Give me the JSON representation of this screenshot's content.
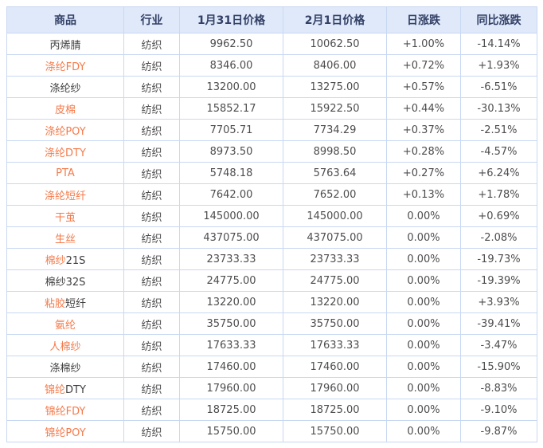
{
  "colors": {
    "header_bg": "#dfe9fa",
    "header_text": "#344066",
    "grid_line": "#c9d8f2",
    "dark_text": "#404040",
    "gray_text": "#4d4d4d",
    "orange_link": "#f57a4a",
    "up_red": "#e60000",
    "down_green": "#008000"
  },
  "table": {
    "columns": [
      {
        "label": "商品"
      },
      {
        "label": "行业"
      },
      {
        "label": "1月31日价格"
      },
      {
        "label": "2月1日价格"
      },
      {
        "label": "日涨跌"
      },
      {
        "label": "同比涨跌"
      }
    ],
    "rows": [
      {
        "name": [
          {
            "text": "丙烯腈",
            "style": "dark"
          }
        ],
        "industry": "纺织",
        "price_jan31": "9962.50",
        "price_feb1": "10062.50",
        "daily_change": {
          "text": "+1.00%",
          "style": "red"
        },
        "yoy_change": {
          "text": "-14.14%",
          "style": "green"
        }
      },
      {
        "name": [
          {
            "text": "涤纶FDY",
            "style": "orange"
          }
        ],
        "industry": "纺织",
        "price_jan31": "8346.00",
        "price_feb1": "8406.00",
        "daily_change": {
          "text": "+0.72%",
          "style": "red"
        },
        "yoy_change": {
          "text": "+1.93%",
          "style": "red"
        }
      },
      {
        "name": [
          {
            "text": "涤纶纱",
            "style": "dark"
          }
        ],
        "industry": "纺织",
        "price_jan31": "13200.00",
        "price_feb1": "13275.00",
        "daily_change": {
          "text": "+0.57%",
          "style": "red"
        },
        "yoy_change": {
          "text": "-6.51%",
          "style": "green"
        }
      },
      {
        "name": [
          {
            "text": "皮棉",
            "style": "orange"
          }
        ],
        "industry": "纺织",
        "price_jan31": "15852.17",
        "price_feb1": "15922.50",
        "daily_change": {
          "text": "+0.44%",
          "style": "red"
        },
        "yoy_change": {
          "text": "-30.13%",
          "style": "green"
        }
      },
      {
        "name": [
          {
            "text": "涤纶POY",
            "style": "orange"
          }
        ],
        "industry": "纺织",
        "price_jan31": "7705.71",
        "price_feb1": "7734.29",
        "daily_change": {
          "text": "+0.37%",
          "style": "red"
        },
        "yoy_change": {
          "text": "-2.51%",
          "style": "green"
        }
      },
      {
        "name": [
          {
            "text": "涤纶DTY",
            "style": "orange"
          }
        ],
        "industry": "纺织",
        "price_jan31": "8973.50",
        "price_feb1": "8998.50",
        "daily_change": {
          "text": "+0.28%",
          "style": "red"
        },
        "yoy_change": {
          "text": "-4.57%",
          "style": "green"
        }
      },
      {
        "name": [
          {
            "text": "PTA",
            "style": "orange"
          }
        ],
        "industry": "纺织",
        "price_jan31": "5748.18",
        "price_feb1": "5763.64",
        "daily_change": {
          "text": "+0.27%",
          "style": "red"
        },
        "yoy_change": {
          "text": "+6.24%",
          "style": "red"
        }
      },
      {
        "name": [
          {
            "text": "涤纶短纤",
            "style": "orange"
          }
        ],
        "industry": "纺织",
        "price_jan31": "7642.00",
        "price_feb1": "7652.00",
        "daily_change": {
          "text": "+0.13%",
          "style": "red"
        },
        "yoy_change": {
          "text": "+1.78%",
          "style": "red"
        }
      },
      {
        "name": [
          {
            "text": "干茧",
            "style": "orange"
          }
        ],
        "industry": "纺织",
        "price_jan31": "145000.00",
        "price_feb1": "145000.00",
        "daily_change": {
          "text": "0.00%",
          "style": "gray"
        },
        "yoy_change": {
          "text": "+0.69%",
          "style": "red"
        }
      },
      {
        "name": [
          {
            "text": "生丝",
            "style": "orange"
          }
        ],
        "industry": "纺织",
        "price_jan31": "437075.00",
        "price_feb1": "437075.00",
        "daily_change": {
          "text": "0.00%",
          "style": "gray"
        },
        "yoy_change": {
          "text": "-2.08%",
          "style": "green"
        }
      },
      {
        "name": [
          {
            "text": "棉纱",
            "style": "orange"
          },
          {
            "text": "21S",
            "style": "dark"
          }
        ],
        "industry": "纺织",
        "price_jan31": "23733.33",
        "price_feb1": "23733.33",
        "daily_change": {
          "text": "0.00%",
          "style": "gray"
        },
        "yoy_change": {
          "text": "-19.73%",
          "style": "green"
        }
      },
      {
        "name": [
          {
            "text": "棉纱32S",
            "style": "dark"
          }
        ],
        "industry": "纺织",
        "price_jan31": "24775.00",
        "price_feb1": "24775.00",
        "daily_change": {
          "text": "0.00%",
          "style": "gray"
        },
        "yoy_change": {
          "text": "-19.39%",
          "style": "green"
        }
      },
      {
        "name": [
          {
            "text": "粘胶",
            "style": "orange"
          },
          {
            "text": "短纤",
            "style": "dark"
          }
        ],
        "industry": "纺织",
        "price_jan31": "13220.00",
        "price_feb1": "13220.00",
        "daily_change": {
          "text": "0.00%",
          "style": "gray"
        },
        "yoy_change": {
          "text": "+3.93%",
          "style": "red"
        }
      },
      {
        "name": [
          {
            "text": "氨纶",
            "style": "orange"
          }
        ],
        "industry": "纺织",
        "price_jan31": "35750.00",
        "price_feb1": "35750.00",
        "daily_change": {
          "text": "0.00%",
          "style": "gray"
        },
        "yoy_change": {
          "text": "-39.41%",
          "style": "green"
        }
      },
      {
        "name": [
          {
            "text": "人棉纱",
            "style": "orange"
          }
        ],
        "industry": "纺织",
        "price_jan31": "17633.33",
        "price_feb1": "17633.33",
        "daily_change": {
          "text": "0.00%",
          "style": "gray"
        },
        "yoy_change": {
          "text": "-3.47%",
          "style": "green"
        }
      },
      {
        "name": [
          {
            "text": "涤棉纱",
            "style": "dark"
          }
        ],
        "industry": "纺织",
        "price_jan31": "17460.00",
        "price_feb1": "17460.00",
        "daily_change": {
          "text": "0.00%",
          "style": "gray"
        },
        "yoy_change": {
          "text": "-15.90%",
          "style": "green"
        }
      },
      {
        "name": [
          {
            "text": "锦纶",
            "style": "orange"
          },
          {
            "text": "DTY",
            "style": "dark"
          }
        ],
        "industry": "纺织",
        "price_jan31": "17960.00",
        "price_feb1": "17960.00",
        "daily_change": {
          "text": "0.00%",
          "style": "gray"
        },
        "yoy_change": {
          "text": "-8.83%",
          "style": "green"
        }
      },
      {
        "name": [
          {
            "text": "锦纶FDY",
            "style": "orange"
          }
        ],
        "industry": "纺织",
        "price_jan31": "18725.00",
        "price_feb1": "18725.00",
        "daily_change": {
          "text": "0.00%",
          "style": "gray"
        },
        "yoy_change": {
          "text": "-9.10%",
          "style": "green"
        }
      },
      {
        "name": [
          {
            "text": "锦纶POY",
            "style": "orange"
          }
        ],
        "industry": "纺织",
        "price_jan31": "15750.00",
        "price_feb1": "15750.00",
        "daily_change": {
          "text": "0.00%",
          "style": "gray"
        },
        "yoy_change": {
          "text": "-9.87%",
          "style": "green"
        }
      }
    ]
  }
}
